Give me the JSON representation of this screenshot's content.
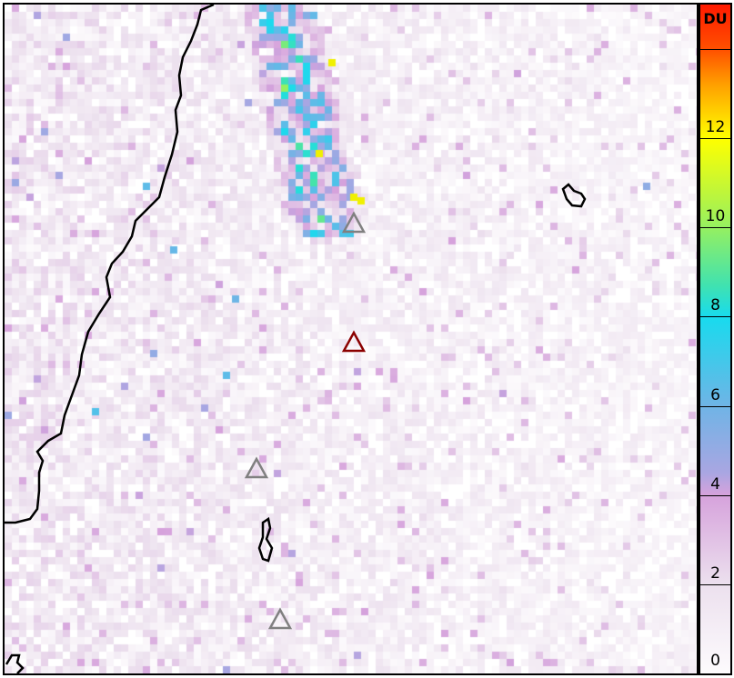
{
  "colorbar": {
    "unit": "DU",
    "ticks": [
      "0",
      "2",
      "4",
      "6",
      "8",
      "10",
      "12"
    ],
    "range": [
      0,
      15
    ],
    "colors": [
      "#ffffff",
      "#ece0ee",
      "#d6a2dc",
      "#6fb4e6",
      "#18dbee",
      "#96f060",
      "#ffff00",
      "#ff8000",
      "#ff0000"
    ]
  },
  "map": {
    "markers": [
      {
        "type": "triangle",
        "color": "#808080"
      },
      {
        "type": "triangle",
        "color": "#8b0000"
      },
      {
        "type": "triangle",
        "color": "#808080"
      },
      {
        "type": "triangle",
        "color": "#808080"
      }
    ],
    "coastline_color": "#000000"
  }
}
